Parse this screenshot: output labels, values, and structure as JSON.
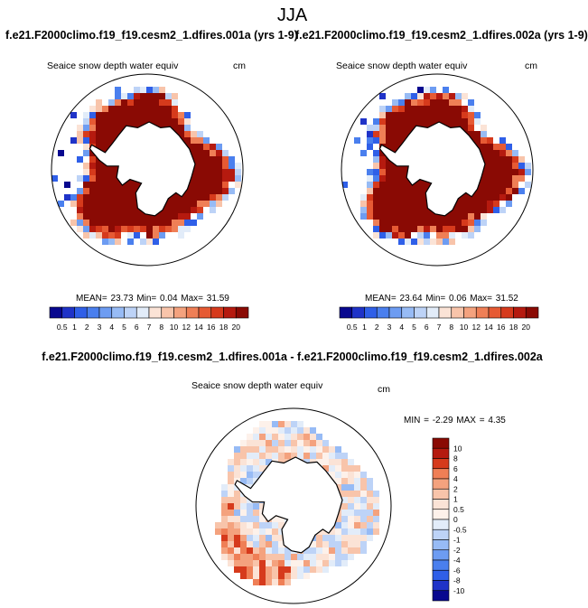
{
  "season": "JJA",
  "panels": [
    {
      "title": "f.e21.F2000climo.f19_f19.cesm2_1.dfires.001a (yrs 1-9)",
      "variable": "Seaice snow depth water equiv",
      "units": "cm",
      "stats": "MEAN= 23.73  Min=  0.04  Max=  31.59",
      "mean": 23.73,
      "min": 0.04,
      "max": 31.59
    },
    {
      "title": "f.e21.F2000climo.f19_f19.cesm2_1.dfires.002a (yrs 1-9)",
      "variable": "Seaice snow depth water equiv",
      "units": "cm",
      "stats": "MEAN= 23.64  Min=  0.06  Max=  31.52",
      "mean": 23.64,
      "min": 0.06,
      "max": 31.52
    }
  ],
  "diff": {
    "title": "f.e21.F2000climo.f19_f19.cesm2_1.dfires.001a - f.e21.F2000climo.f19_f19.cesm2_1.dfires.002a",
    "variable": "Seaice snow depth water equiv",
    "units": "cm",
    "stats": "MIN =  -2.29 MAX =   4.35",
    "min": -2.29,
    "max": 4.35
  },
  "chart_data": [
    {
      "type": "heatmap",
      "projection": "south polar stereographic",
      "title": "f.e21.F2000climo.f19_f19.cesm2_1.dfires.001a (yrs 1-9)",
      "variable": "Seaice snow depth water equiv",
      "units": "cm",
      "colorbar_levels": [
        "0.5",
        "1",
        "2",
        "3",
        "4",
        "5",
        "6",
        "7",
        "8",
        "10",
        "12",
        "14",
        "16",
        "18",
        "20"
      ],
      "colorbar_colors": [
        "#08088f",
        "#1f33c8",
        "#2f5fe8",
        "#4a7fee",
        "#6d9cf2",
        "#97bbf5",
        "#bdd3f7",
        "#e2ecf9",
        "#fbe3d6",
        "#f8c4aa",
        "#f4a27e",
        "#ef7f56",
        "#e65a34",
        "#d63a1c",
        "#b51a0f",
        "#8a0a04"
      ],
      "mean": 23.73,
      "min": 0.04,
      "max": 31.59
    },
    {
      "type": "heatmap",
      "projection": "south polar stereographic",
      "title": "f.e21.F2000climo.f19_f19.cesm2_1.dfires.002a (yrs 1-9)",
      "variable": "Seaice snow depth water equiv",
      "units": "cm",
      "colorbar_levels": [
        "0.5",
        "1",
        "2",
        "3",
        "4",
        "5",
        "6",
        "7",
        "8",
        "10",
        "12",
        "14",
        "16",
        "18",
        "20"
      ],
      "colorbar_colors": [
        "#08088f",
        "#1f33c8",
        "#2f5fe8",
        "#4a7fee",
        "#6d9cf2",
        "#97bbf5",
        "#bdd3f7",
        "#e2ecf9",
        "#fbe3d6",
        "#f8c4aa",
        "#f4a27e",
        "#ef7f56",
        "#e65a34",
        "#d63a1c",
        "#b51a0f",
        "#8a0a04"
      ],
      "mean": 23.64,
      "min": 0.06,
      "max": 31.52
    },
    {
      "type": "heatmap",
      "projection": "south polar stereographic",
      "title": "f.e21.F2000climo.f19_f19.cesm2_1.dfires.001a - f.e21.F2000climo.f19_f19.cesm2_1.dfires.002a",
      "variable": "Seaice snow depth water equiv",
      "units": "cm",
      "colorbar_levels": [
        "10",
        "8",
        "6",
        "4",
        "2",
        "1",
        "0.5",
        "0",
        "-0.5",
        "-1",
        "-2",
        "-4",
        "-6",
        "-8",
        "-10"
      ],
      "colorbar_colors": [
        "#8a0a04",
        "#b51a0f",
        "#d63a1c",
        "#ef7f56",
        "#f4a27e",
        "#f8c4aa",
        "#fbe3d6",
        "#fdf1ea",
        "#e2ecf9",
        "#bdd3f7",
        "#97bbf5",
        "#6d9cf2",
        "#4a7fee",
        "#2f5fe8",
        "#1f33c8",
        "#08088f"
      ],
      "min": -2.29,
      "max": 4.35
    }
  ]
}
